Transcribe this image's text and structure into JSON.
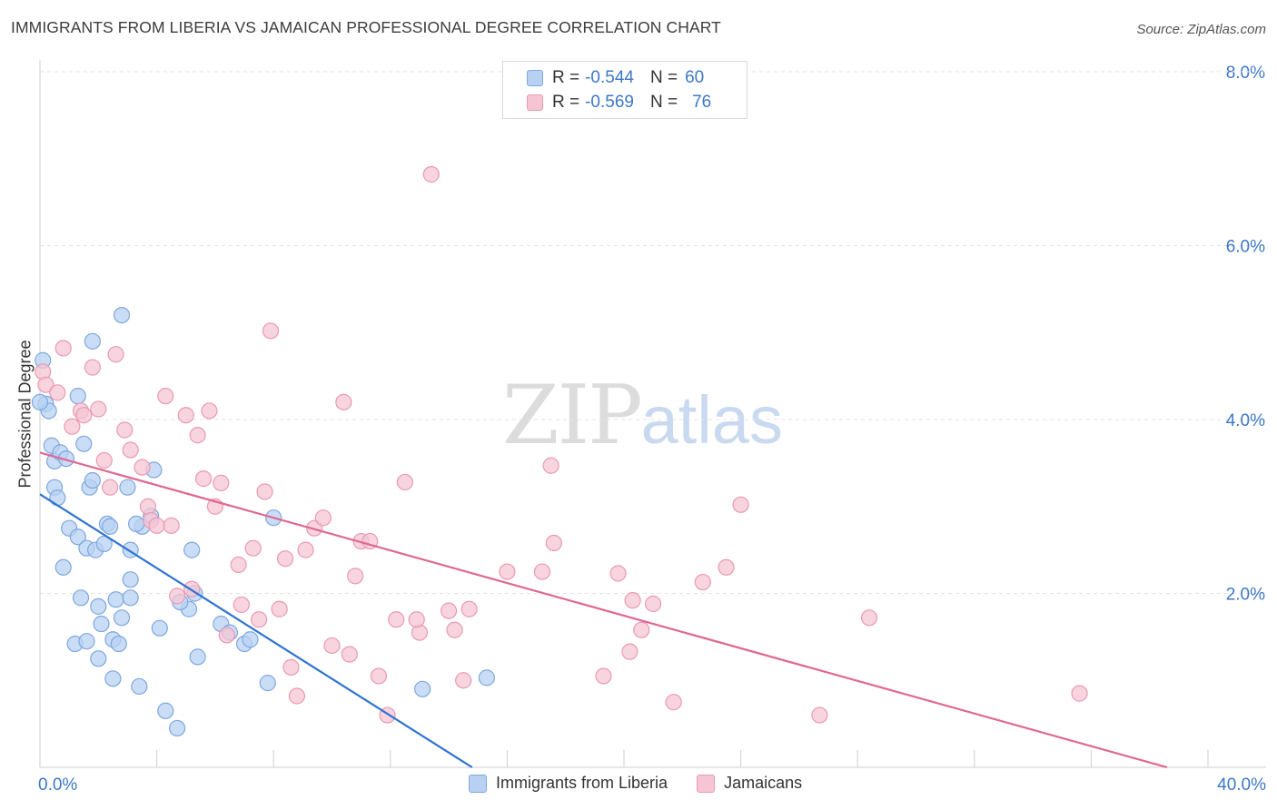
{
  "title": "IMMIGRANTS FROM LIBERIA VS JAMAICAN PROFESSIONAL DEGREE CORRELATION CHART",
  "source": "Source: ZipAtlas.com",
  "watermark": {
    "zip": "ZIP",
    "atlas": "atlas"
  },
  "legend": {
    "series1": {
      "r_label": "R =",
      "r_value": "-0.544",
      "n_label": "N =",
      "n_value": "60"
    },
    "series2": {
      "r_label": "R =",
      "r_value": "-0.569",
      "n_label": "N =",
      "n_value": "76"
    }
  },
  "colors": {
    "blue_fill": "#b8d1f3",
    "blue_stroke": "#7fa7de",
    "blue_line": "#2f74d0",
    "pink_fill": "#f6c5d4",
    "pink_stroke": "#e99ab3",
    "pink_line": "#e06890",
    "axis_text": "#3c78c8",
    "grid": "#e3e3e3"
  },
  "chart_data": {
    "type": "scatter",
    "title": "IMMIGRANTS FROM LIBERIA VS JAMAICAN PROFESSIONAL DEGREE CORRELATION CHART",
    "xlabel": "",
    "ylabel": "Professional Degree",
    "xlim": [
      0,
      40
    ],
    "ylim": [
      0,
      8.0
    ],
    "x_tick_labels": [
      "0.0%",
      "40.0%"
    ],
    "y_ticks": [
      2.0,
      4.0,
      6.0,
      8.0
    ],
    "y_tick_labels": [
      "2.0%",
      "4.0%",
      "6.0%",
      "8.0%"
    ],
    "grid": true,
    "legend_position": "bottom",
    "series": [
      {
        "name": "Immigrants from Liberia",
        "trend": [
          [
            0,
            3.14
          ],
          [
            14.8,
            0.0
          ]
        ],
        "points": [
          [
            0.1,
            4.68
          ],
          [
            0.2,
            4.18
          ],
          [
            0.3,
            4.1
          ],
          [
            0.4,
            3.7
          ],
          [
            0.5,
            3.52
          ],
          [
            0.7,
            3.62
          ],
          [
            0.9,
            3.55
          ],
          [
            1.3,
            4.27
          ],
          [
            1.5,
            3.72
          ],
          [
            1.7,
            3.22
          ],
          [
            1.8,
            3.3
          ],
          [
            0.5,
            3.22
          ],
          [
            0.6,
            3.1
          ],
          [
            1.0,
            2.75
          ],
          [
            1.3,
            2.65
          ],
          [
            1.6,
            2.52
          ],
          [
            1.9,
            2.5
          ],
          [
            2.2,
            2.57
          ],
          [
            2.3,
            2.8
          ],
          [
            2.4,
            2.77
          ],
          [
            0.8,
            2.3
          ],
          [
            1.4,
            1.95
          ],
          [
            2.0,
            1.85
          ],
          [
            2.1,
            1.65
          ],
          [
            2.6,
            1.93
          ],
          [
            2.8,
            1.72
          ],
          [
            3.1,
            2.5
          ],
          [
            3.1,
            2.16
          ],
          [
            3.1,
            1.95
          ],
          [
            1.2,
            1.42
          ],
          [
            1.6,
            1.45
          ],
          [
            2.0,
            1.25
          ],
          [
            2.5,
            1.47
          ],
          [
            2.7,
            1.42
          ],
          [
            2.5,
            1.02
          ],
          [
            3.4,
            0.93
          ],
          [
            4.1,
            1.6
          ],
          [
            4.3,
            0.65
          ],
          [
            4.7,
            0.45
          ],
          [
            5.1,
            1.82
          ],
          [
            5.3,
            2.0
          ],
          [
            5.2,
            2.5
          ],
          [
            5.4,
            1.27
          ],
          [
            6.2,
            1.65
          ],
          [
            6.5,
            1.55
          ],
          [
            7.0,
            1.42
          ],
          [
            7.2,
            1.47
          ],
          [
            7.8,
            0.97
          ],
          [
            8.0,
            2.87
          ],
          [
            3.0,
            3.22
          ],
          [
            3.5,
            2.77
          ],
          [
            3.8,
            2.89
          ],
          [
            3.9,
            3.42
          ],
          [
            2.8,
            5.2
          ],
          [
            1.8,
            4.9
          ],
          [
            0.0,
            4.2
          ],
          [
            13.1,
            0.9
          ],
          [
            15.3,
            1.03
          ],
          [
            3.3,
            2.8
          ],
          [
            4.8,
            1.9
          ]
        ]
      },
      {
        "name": "Jamaicans",
        "trend": [
          [
            0,
            3.62
          ],
          [
            38.6,
            0.0
          ]
        ],
        "points": [
          [
            0.1,
            4.55
          ],
          [
            0.2,
            4.4
          ],
          [
            0.6,
            4.31
          ],
          [
            0.8,
            4.82
          ],
          [
            1.1,
            3.92
          ],
          [
            1.4,
            4.1
          ],
          [
            1.5,
            4.05
          ],
          [
            1.8,
            4.6
          ],
          [
            2.0,
            4.12
          ],
          [
            2.2,
            3.53
          ],
          [
            2.4,
            3.22
          ],
          [
            2.6,
            4.75
          ],
          [
            2.9,
            3.88
          ],
          [
            3.1,
            3.65
          ],
          [
            3.5,
            3.45
          ],
          [
            3.7,
            3.0
          ],
          [
            3.8,
            2.84
          ],
          [
            4.0,
            2.78
          ],
          [
            4.3,
            4.27
          ],
          [
            4.5,
            2.78
          ],
          [
            4.7,
            1.97
          ],
          [
            5.0,
            4.05
          ],
          [
            5.2,
            2.05
          ],
          [
            5.4,
            3.82
          ],
          [
            5.6,
            3.32
          ],
          [
            5.8,
            4.1
          ],
          [
            6.0,
            3.0
          ],
          [
            6.2,
            3.27
          ],
          [
            6.4,
            1.52
          ],
          [
            6.8,
            2.33
          ],
          [
            6.9,
            1.87
          ],
          [
            7.3,
            2.52
          ],
          [
            7.5,
            1.7
          ],
          [
            7.7,
            3.17
          ],
          [
            7.9,
            5.02
          ],
          [
            8.2,
            1.82
          ],
          [
            8.4,
            2.4
          ],
          [
            8.6,
            1.15
          ],
          [
            8.8,
            0.82
          ],
          [
            9.1,
            2.5
          ],
          [
            9.4,
            2.75
          ],
          [
            9.7,
            2.87
          ],
          [
            10.0,
            1.4
          ],
          [
            10.4,
            4.2
          ],
          [
            10.6,
            1.3
          ],
          [
            10.8,
            2.2
          ],
          [
            11.0,
            2.6
          ],
          [
            11.3,
            2.6
          ],
          [
            11.6,
            1.05
          ],
          [
            11.9,
            0.6
          ],
          [
            12.2,
            1.7
          ],
          [
            12.5,
            3.28
          ],
          [
            13.0,
            1.55
          ],
          [
            13.4,
            6.82
          ],
          [
            14.0,
            1.8
          ],
          [
            14.2,
            1.58
          ],
          [
            14.5,
            1.0
          ],
          [
            14.7,
            1.82
          ],
          [
            16.0,
            2.25
          ],
          [
            17.2,
            2.25
          ],
          [
            17.5,
            3.47
          ],
          [
            17.6,
            2.58
          ],
          [
            19.3,
            1.05
          ],
          [
            19.8,
            2.23
          ],
          [
            20.2,
            1.33
          ],
          [
            20.6,
            1.58
          ],
          [
            20.3,
            1.92
          ],
          [
            21.0,
            1.88
          ],
          [
            21.7,
            0.75
          ],
          [
            22.7,
            2.13
          ],
          [
            23.5,
            2.3
          ],
          [
            24.0,
            3.02
          ],
          [
            26.7,
            0.6
          ],
          [
            28.4,
            1.72
          ],
          [
            35.6,
            0.85
          ],
          [
            12.9,
            1.7
          ]
        ]
      }
    ]
  },
  "bottom_legend": {
    "item1": "Immigrants from Liberia",
    "item2": "Jamaicans"
  }
}
